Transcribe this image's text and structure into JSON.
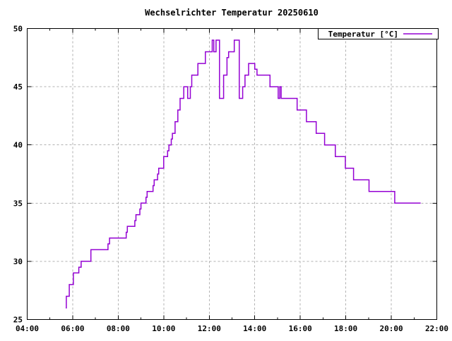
{
  "title": "Wechselrichter Temperatur 20250610",
  "legend": {
    "label": "Temperatur [°C]",
    "position": "top-right",
    "boxed": true
  },
  "colors": {
    "line": "#9400d3",
    "grid": "#b0b0b0",
    "frame": "#000000",
    "background": "#ffffff",
    "text": "#000000"
  },
  "chart_data": {
    "type": "line",
    "line_style": "steps",
    "title": "Wechselrichter Temperatur 20250610",
    "xlabel": "",
    "ylabel": "",
    "x_unit": "time of day (HH:MM)",
    "y_unit": "°C",
    "xlim_hours": [
      4,
      22
    ],
    "ylim": [
      25,
      50
    ],
    "x_major_ticks": [
      {
        "hour": 4,
        "label": "04:00"
      },
      {
        "hour": 6,
        "label": "06:00"
      },
      {
        "hour": 8,
        "label": "08:00"
      },
      {
        "hour": 10,
        "label": "10:00"
      },
      {
        "hour": 12,
        "label": "12:00"
      },
      {
        "hour": 14,
        "label": "14:00"
      },
      {
        "hour": 16,
        "label": "16:00"
      },
      {
        "hour": 18,
        "label": "18:00"
      },
      {
        "hour": 20,
        "label": "20:00"
      },
      {
        "hour": 22,
        "label": "22:00"
      }
    ],
    "x_minor_tick_hours": [
      5,
      7,
      9,
      11,
      13,
      15,
      17,
      19,
      21
    ],
    "y_major_ticks": [
      25,
      30,
      35,
      40,
      45,
      50
    ],
    "grid": true,
    "grid_lines_x_hours": [
      6,
      8,
      10,
      12,
      14,
      16,
      18,
      20
    ],
    "grid_lines_y": [
      30,
      35,
      40,
      45
    ],
    "legend_position": "top-right",
    "series": [
      {
        "name": "Temperatur [°C]",
        "color": "#9400d3",
        "points_format": "[decimal_hour, temperature_celsius] — value steps to T at time t",
        "points": [
          [
            5.69,
            26
          ],
          [
            5.72,
            27
          ],
          [
            5.85,
            28
          ],
          [
            6.03,
            29
          ],
          [
            6.27,
            29.5
          ],
          [
            6.37,
            30
          ],
          [
            6.8,
            31
          ],
          [
            7.55,
            31.5
          ],
          [
            7.62,
            32
          ],
          [
            8.35,
            32.5
          ],
          [
            8.4,
            33
          ],
          [
            8.73,
            33.5
          ],
          [
            8.78,
            34
          ],
          [
            8.95,
            34.5
          ],
          [
            9.0,
            35
          ],
          [
            9.22,
            35.5
          ],
          [
            9.27,
            36
          ],
          [
            9.53,
            36.5
          ],
          [
            9.58,
            37
          ],
          [
            9.73,
            37.5
          ],
          [
            9.78,
            38
          ],
          [
            10.0,
            39
          ],
          [
            10.17,
            39.5
          ],
          [
            10.23,
            40
          ],
          [
            10.33,
            40.5
          ],
          [
            10.38,
            41
          ],
          [
            10.5,
            42
          ],
          [
            10.62,
            43
          ],
          [
            10.72,
            44
          ],
          [
            10.88,
            45
          ],
          [
            11.05,
            44
          ],
          [
            11.17,
            45
          ],
          [
            11.23,
            46
          ],
          [
            11.5,
            47
          ],
          [
            11.83,
            48
          ],
          [
            12.13,
            49
          ],
          [
            12.2,
            48
          ],
          [
            12.3,
            49
          ],
          [
            12.45,
            44
          ],
          [
            12.63,
            46
          ],
          [
            12.78,
            47.5
          ],
          [
            12.85,
            48
          ],
          [
            13.1,
            49
          ],
          [
            13.32,
            44
          ],
          [
            13.47,
            45
          ],
          [
            13.57,
            46
          ],
          [
            13.73,
            47
          ],
          [
            14.0,
            46.5
          ],
          [
            14.1,
            46
          ],
          [
            14.67,
            45
          ],
          [
            15.03,
            44
          ],
          [
            15.1,
            45
          ],
          [
            15.16,
            44
          ],
          [
            15.86,
            43
          ],
          [
            16.27,
            42
          ],
          [
            16.7,
            41
          ],
          [
            17.07,
            40
          ],
          [
            17.54,
            39
          ],
          [
            17.98,
            38
          ],
          [
            18.34,
            37
          ],
          [
            19.02,
            36
          ],
          [
            20.15,
            35
          ],
          [
            21.29,
            35
          ]
        ]
      }
    ]
  }
}
